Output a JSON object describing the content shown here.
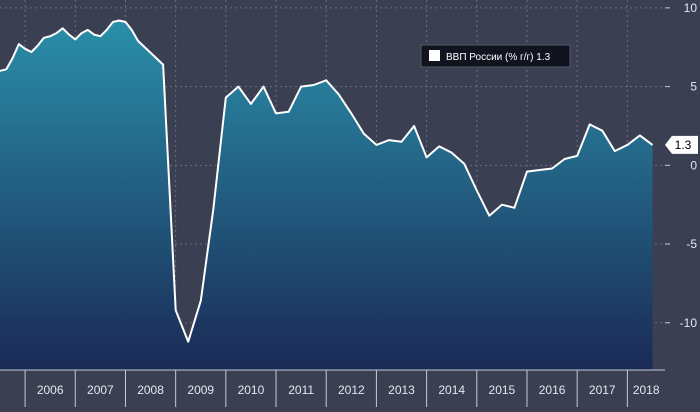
{
  "chart_data": {
    "type": "area",
    "title": "",
    "xlabel": "",
    "ylabel": "",
    "ylim": [
      -13,
      10.5
    ],
    "yticks": [
      10,
      5,
      0,
      -5,
      -10
    ],
    "xlim": [
      2005.5,
      2018.75
    ],
    "x_tick_labels": [
      "2006",
      "2007",
      "2008",
      "2009",
      "2010",
      "2011",
      "2012",
      "2013",
      "2014",
      "2015",
      "2016",
      "2017",
      "2018"
    ],
    "grid": true,
    "legend": {
      "position": "top-right"
    },
    "series": [
      {
        "name": "ВВП России (% г/г)",
        "last_value_label": "1.3",
        "last_value_text": "1.3",
        "color": "#ffffff",
        "area_top_color": "#2a8fa9",
        "area_bottom_color": "#1a2a56",
        "x": [
          2005.5,
          2005.625,
          2005.75,
          2005.875,
          2006.0,
          2006.125,
          2006.25,
          2006.375,
          2006.5,
          2006.625,
          2006.75,
          2006.875,
          2007.0,
          2007.125,
          2007.25,
          2007.375,
          2007.5,
          2007.625,
          2007.75,
          2007.875,
          2008.0,
          2008.125,
          2008.25,
          2008.75,
          2009.0,
          2009.25,
          2009.5,
          2009.75,
          2010.0,
          2010.25,
          2010.5,
          2010.75,
          2011.0,
          2011.25,
          2011.5,
          2011.75,
          2012.0,
          2012.25,
          2012.5,
          2012.75,
          2013.0,
          2013.25,
          2013.5,
          2013.75,
          2014.0,
          2014.25,
          2014.5,
          2014.75,
          2015.0,
          2015.25,
          2015.5,
          2015.75,
          2016.0,
          2016.25,
          2016.5,
          2016.75,
          2017.0,
          2017.25,
          2017.5,
          2017.75,
          2018.0,
          2018.25,
          2018.5
        ],
        "values": [
          6.0,
          6.1,
          6.8,
          7.7,
          7.4,
          7.2,
          7.6,
          8.1,
          8.2,
          8.4,
          8.7,
          8.3,
          8.0,
          8.4,
          8.6,
          8.3,
          8.2,
          8.6,
          9.1,
          9.2,
          9.1,
          8.6,
          7.9,
          6.4,
          -9.2,
          -11.2,
          -8.6,
          -2.8,
          4.3,
          5.0,
          3.9,
          5.0,
          3.3,
          3.4,
          5.0,
          5.1,
          5.4,
          4.5,
          3.3,
          2.0,
          1.3,
          1.6,
          1.5,
          2.5,
          0.5,
          1.2,
          0.8,
          0.1,
          -1.6,
          -3.2,
          -2.5,
          -2.7,
          -0.4,
          -0.3,
          -0.2,
          0.4,
          0.6,
          2.6,
          2.2,
          0.9,
          1.3,
          1.9,
          1.3
        ]
      }
    ]
  }
}
